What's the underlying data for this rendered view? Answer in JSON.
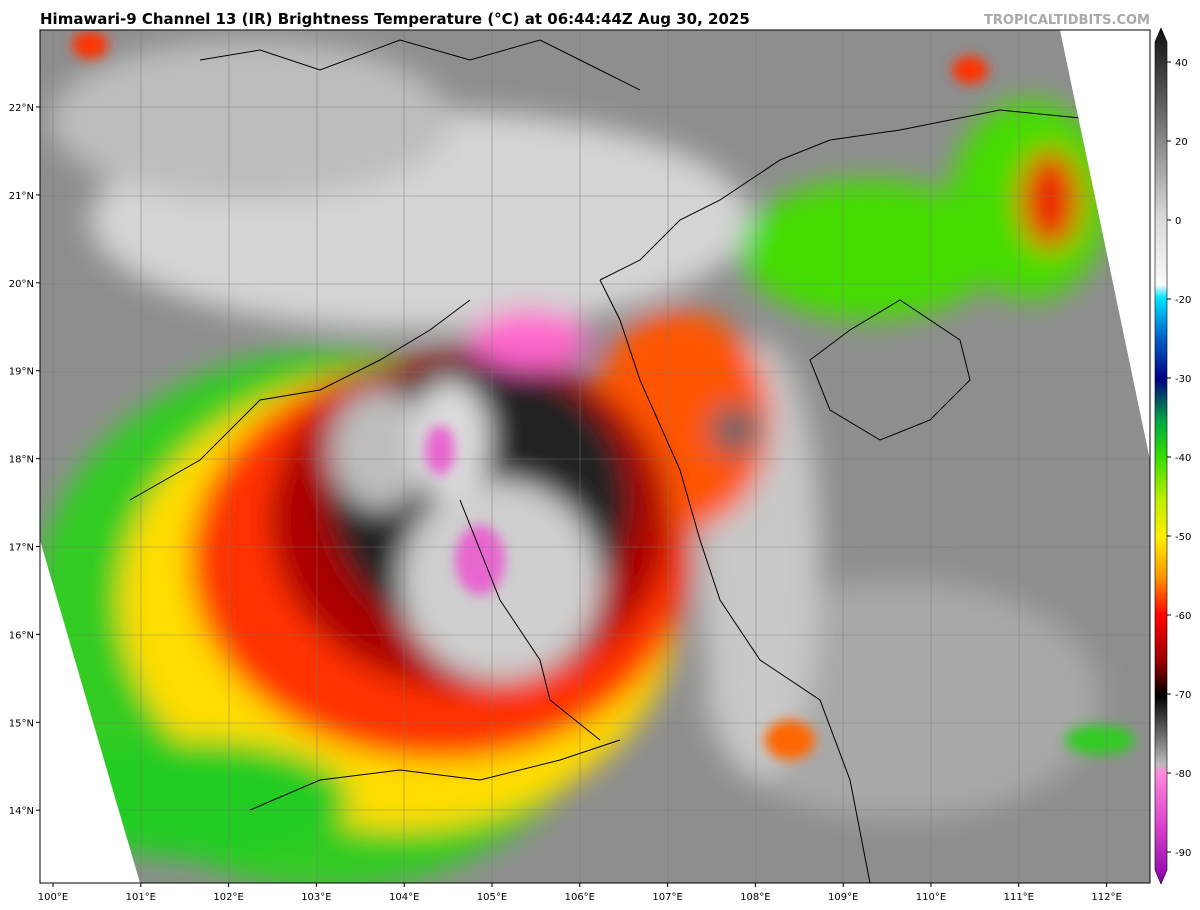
{
  "header": {
    "title": "Himawari-9 Channel 13 (IR) Brightness Temperature (°C) at 06:44:44Z Aug 30, 2025",
    "credit": "TROPICALTIDBITS.COM"
  },
  "map": {
    "lat_labels": [
      "22°N",
      "21°N",
      "20°N",
      "19°N",
      "18°N",
      "17°N",
      "16°N",
      "15°N",
      "14°N"
    ],
    "lon_labels": [
      "100°E",
      "101°E",
      "102°E",
      "103°E",
      "104°E",
      "105°E",
      "106°E",
      "107°E",
      "108°E",
      "109°E",
      "110°E",
      "111°E",
      "112°E"
    ]
  },
  "colorbar": {
    "ticks": [
      40,
      20,
      0,
      -20,
      -30,
      -40,
      -50,
      -60,
      -70,
      -80,
      -90
    ]
  }
}
